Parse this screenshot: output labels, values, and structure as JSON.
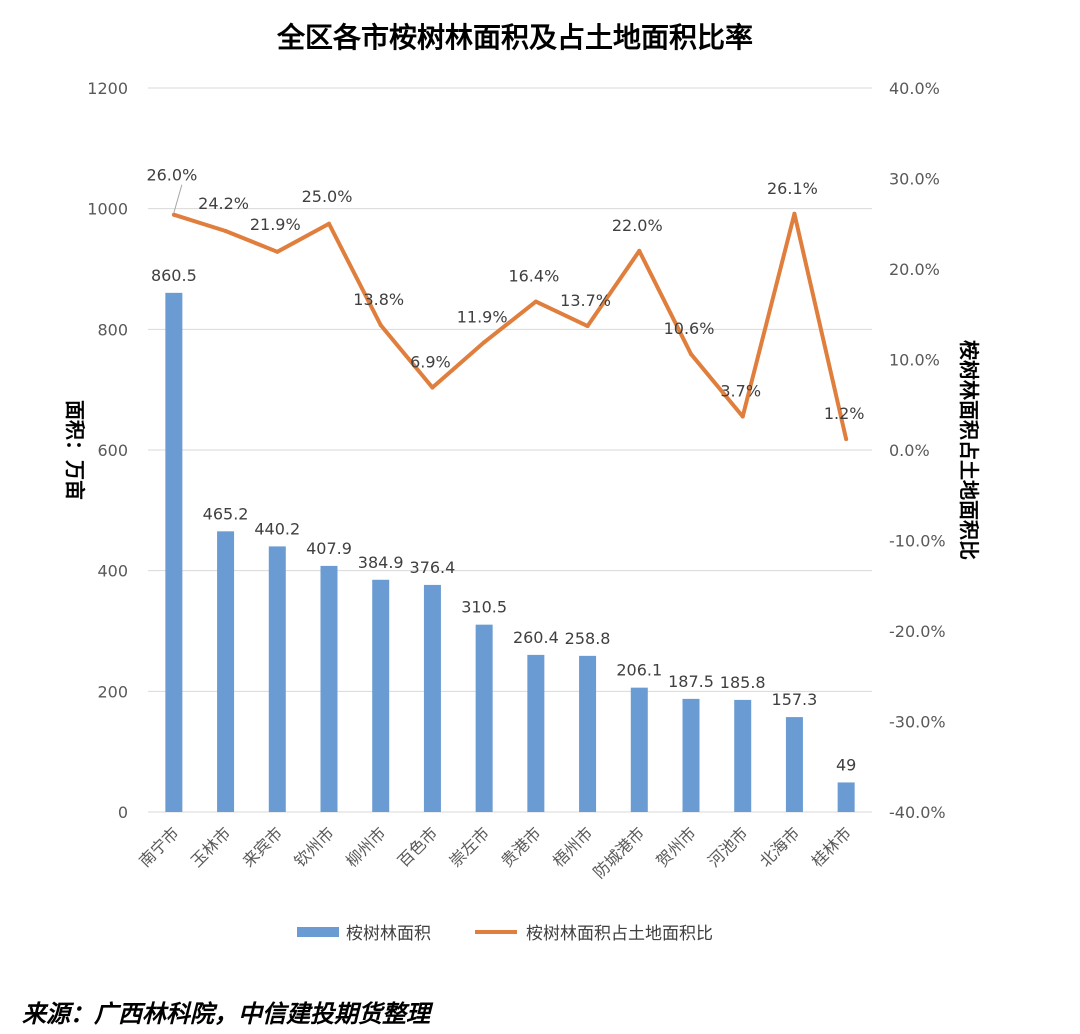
{
  "source_note": "来源：广西林科院，中信建投期货整理",
  "chart_data": {
    "type": "bar+line",
    "title": "全区各市桉树林面积及占土地面积比率",
    "ylabel_left": "面积：万亩",
    "ylabel_right": "桉树林面积占土地面积比",
    "categories": [
      "南宁市",
      "玉林市",
      "来宾市",
      "钦州市",
      "柳州市",
      "百色市",
      "崇左市",
      "贵港市",
      "梧州市",
      "防城港市",
      "贺州市",
      "河池市",
      "北海市",
      "桂林市"
    ],
    "series": [
      {
        "name": "桉树林面积",
        "type": "bar",
        "axis": "left",
        "color": "#6a9bd3",
        "values": [
          860.5,
          465.2,
          440.2,
          407.9,
          384.9,
          376.4,
          310.5,
          260.4,
          258.8,
          206.1,
          187.5,
          185.8,
          157.3,
          49
        ],
        "labels": [
          "860.5",
          "465.2",
          "440.2",
          "407.9",
          "384.9",
          "376.4",
          "310.5",
          "260.4",
          "258.8",
          "206.1",
          "187.5",
          "185.8",
          "157.3",
          "49"
        ]
      },
      {
        "name": "桉树林面积占土地面积比",
        "type": "line",
        "axis": "right",
        "color": "#e07f3d",
        "values": [
          26.0,
          24.2,
          21.9,
          25.0,
          13.8,
          6.9,
          11.9,
          16.4,
          13.7,
          22.0,
          10.6,
          3.7,
          26.1,
          1.2
        ],
        "labels": [
          "26.0%",
          "24.2%",
          "21.9%",
          "25.0%",
          "13.8%",
          "6.9%",
          "11.9%",
          "16.4%",
          "13.7%",
          "22.0%",
          "10.6%",
          "3.7%",
          "26.1%",
          "1.2%"
        ]
      }
    ],
    "yaxis_left": {
      "min": 0,
      "max": 1200,
      "ticks": [
        "0",
        "200",
        "400",
        "600",
        "800",
        "1000",
        "1200"
      ]
    },
    "yaxis_right": {
      "min": -40,
      "max": 40,
      "ticks": [
        "-40.0%",
        "-30.0%",
        "-20.0%",
        "-10.0%",
        "0.0%",
        "10.0%",
        "20.0%",
        "30.0%",
        "40.0%"
      ]
    },
    "grid": true,
    "legend": "bottom"
  }
}
